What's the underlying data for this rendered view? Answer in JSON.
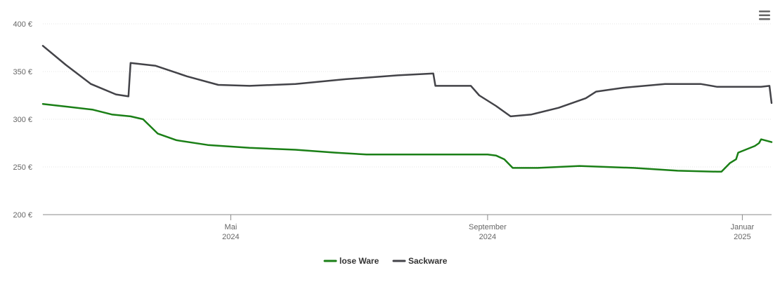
{
  "chart_data": {
    "type": "line",
    "title": "",
    "xlabel": "",
    "ylabel": "",
    "y_ticks": [
      "400 €",
      "350 €",
      "300 €",
      "250 €",
      "200 €"
    ],
    "ylim": [
      200,
      400
    ],
    "x_range": [
      "2024-02-01",
      "2025-01-15"
    ],
    "x_ticks": [
      {
        "date": "2024-05-01",
        "line1": "Mai",
        "line2": "2024"
      },
      {
        "date": "2024-09-01",
        "line1": "September",
        "line2": "2024"
      },
      {
        "date": "2025-01-01",
        "line1": "Januar",
        "line2": "2025"
      }
    ],
    "grid": true,
    "legend_position": "bottom-center",
    "series": [
      {
        "name": "lose Ware",
        "color": "#1a7f16",
        "points": [
          [
            "2024-02-01",
            316
          ],
          [
            "2024-02-13",
            313
          ],
          [
            "2024-02-25",
            310
          ],
          [
            "2024-03-05",
            305
          ],
          [
            "2024-03-14",
            303
          ],
          [
            "2024-03-20",
            300
          ],
          [
            "2024-03-27",
            285
          ],
          [
            "2024-04-05",
            278
          ],
          [
            "2024-04-20",
            273
          ],
          [
            "2024-05-10",
            270
          ],
          [
            "2024-06-01",
            268
          ],
          [
            "2024-06-20",
            265
          ],
          [
            "2024-07-05",
            263
          ],
          [
            "2024-08-01",
            263
          ],
          [
            "2024-09-01",
            263
          ],
          [
            "2024-09-05",
            262
          ],
          [
            "2024-09-09",
            258
          ],
          [
            "2024-09-13",
            249
          ],
          [
            "2024-09-25",
            249
          ],
          [
            "2024-10-15",
            251
          ],
          [
            "2024-11-10",
            249
          ],
          [
            "2024-12-01",
            246
          ],
          [
            "2024-12-20",
            245
          ],
          [
            "2024-12-22",
            245
          ],
          [
            "2024-12-26",
            254
          ],
          [
            "2024-12-29",
            258
          ],
          [
            "2024-12-30",
            265
          ],
          [
            "2025-01-07",
            272
          ],
          [
            "2025-01-09",
            275
          ],
          [
            "2025-01-10",
            279
          ],
          [
            "2025-01-15",
            276
          ]
        ]
      },
      {
        "name": "Sackware",
        "color": "#434348",
        "points": [
          [
            "2024-02-01",
            377
          ],
          [
            "2024-02-12",
            357
          ],
          [
            "2024-02-24",
            337
          ],
          [
            "2024-03-07",
            326
          ],
          [
            "2024-03-13",
            324
          ],
          [
            "2024-03-14",
            359
          ],
          [
            "2024-03-26",
            356
          ],
          [
            "2024-04-10",
            345
          ],
          [
            "2024-04-25",
            336
          ],
          [
            "2024-05-10",
            335
          ],
          [
            "2024-06-01",
            337
          ],
          [
            "2024-06-25",
            342
          ],
          [
            "2024-07-20",
            346
          ],
          [
            "2024-08-06",
            348
          ],
          [
            "2024-08-07",
            335
          ],
          [
            "2024-08-24",
            335
          ],
          [
            "2024-08-28",
            325
          ],
          [
            "2024-09-05",
            314
          ],
          [
            "2024-09-12",
            303
          ],
          [
            "2024-09-22",
            305
          ],
          [
            "2024-10-05",
            312
          ],
          [
            "2024-10-18",
            322
          ],
          [
            "2024-10-23",
            329
          ],
          [
            "2024-11-05",
            333
          ],
          [
            "2024-11-25",
            337
          ],
          [
            "2024-12-12",
            337
          ],
          [
            "2024-12-20",
            334
          ],
          [
            "2025-01-10",
            334
          ],
          [
            "2025-01-14",
            335
          ],
          [
            "2025-01-15",
            317
          ]
        ]
      }
    ]
  },
  "menu": {
    "icon": "hamburger-menu-icon"
  }
}
